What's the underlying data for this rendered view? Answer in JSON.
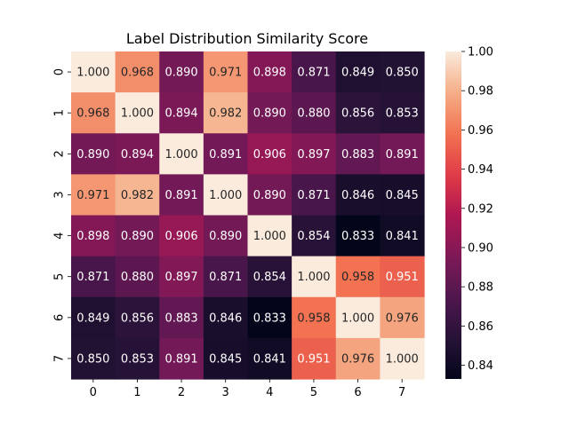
{
  "chart_data": {
    "type": "heatmap",
    "title": "Label Distribution Similarity Score",
    "x_categories": [
      "0",
      "1",
      "2",
      "3",
      "4",
      "5",
      "6",
      "7"
    ],
    "y_categories": [
      "0",
      "1",
      "2",
      "3",
      "4",
      "5",
      "6",
      "7"
    ],
    "values": [
      [
        1.0,
        0.968,
        0.89,
        0.971,
        0.898,
        0.871,
        0.849,
        0.85
      ],
      [
        0.968,
        1.0,
        0.894,
        0.982,
        0.89,
        0.88,
        0.856,
        0.853
      ],
      [
        0.89,
        0.894,
        1.0,
        0.891,
        0.906,
        0.897,
        0.883,
        0.891
      ],
      [
        0.971,
        0.982,
        0.891,
        1.0,
        0.89,
        0.871,
        0.846,
        0.845
      ],
      [
        0.898,
        0.89,
        0.906,
        0.89,
        1.0,
        0.854,
        0.833,
        0.841
      ],
      [
        0.871,
        0.88,
        0.897,
        0.871,
        0.854,
        1.0,
        0.958,
        0.951
      ],
      [
        0.849,
        0.856,
        0.883,
        0.846,
        0.833,
        0.958,
        1.0,
        0.976
      ],
      [
        0.85,
        0.853,
        0.891,
        0.845,
        0.841,
        0.951,
        0.976,
        1.0
      ]
    ],
    "cell_labels": [
      [
        "1.000",
        "0.968",
        "0.890",
        "0.971",
        "0.898",
        "0.871",
        "0.849",
        "0.850"
      ],
      [
        "0.968",
        "1.000",
        "0.894",
        "0.982",
        "0.890",
        "0.880",
        "0.856",
        "0.853"
      ],
      [
        "0.890",
        "0.894",
        "1.000",
        "0.891",
        "0.906",
        "0.897",
        "0.883",
        "0.891"
      ],
      [
        "0.971",
        "0.982",
        "0.891",
        "1.000",
        "0.890",
        "0.871",
        "0.846",
        "0.845"
      ],
      [
        "0.898",
        "0.890",
        "0.906",
        "0.890",
        "1.000",
        "0.854",
        "0.833",
        "0.841"
      ],
      [
        "0.871",
        "0.880",
        "0.897",
        "0.871",
        "0.854",
        "1.000",
        "0.958",
        "0.951"
      ],
      [
        "0.849",
        "0.856",
        "0.883",
        "0.846",
        "0.833",
        "0.958",
        "1.000",
        "0.976"
      ],
      [
        "0.850",
        "0.853",
        "0.891",
        "0.845",
        "0.841",
        "0.951",
        "0.976",
        "1.000"
      ]
    ],
    "vmin": 0.833,
    "vmax": 1.0,
    "colormap": "rocket",
    "colorbar_ticks": [
      "0.84",
      "0.86",
      "0.88",
      "0.90",
      "0.92",
      "0.94",
      "0.96",
      "0.98",
      "1.00"
    ],
    "colorbar_tick_values": [
      0.84,
      0.86,
      0.88,
      0.9,
      0.92,
      0.94,
      0.96,
      0.98,
      1.0
    ],
    "colorbar_position": "right",
    "grid": false
  }
}
